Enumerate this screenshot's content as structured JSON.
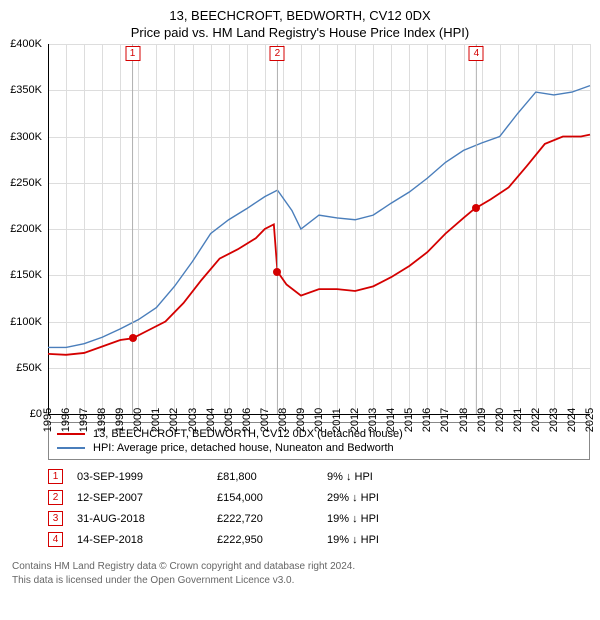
{
  "title_line1": "13, BEECHCROFT, BEDWORTH, CV12 0DX",
  "title_line2": "Price paid vs. HM Land Registry's House Price Index (HPI)",
  "chart": {
    "type": "line",
    "background_color": "#ffffff",
    "grid_color": "#dddddd",
    "axis_color": "#000000",
    "tick_fontsize": 11,
    "y": {
      "min": 0,
      "max": 400000,
      "step": 50000,
      "format": "gbp_k",
      "labels": [
        "£0",
        "£50K",
        "£100K",
        "£150K",
        "£200K",
        "£250K",
        "£300K",
        "£350K",
        "£400K"
      ]
    },
    "x": {
      "min": 1995,
      "max": 2025,
      "step": 1,
      "labels": [
        "1995",
        "1996",
        "1997",
        "1998",
        "1999",
        "2000",
        "2001",
        "2002",
        "2003",
        "2004",
        "2005",
        "2006",
        "2007",
        "2008",
        "2009",
        "2010",
        "2011",
        "2012",
        "2013",
        "2014",
        "2015",
        "2016",
        "2017",
        "2018",
        "2019",
        "2020",
        "2021",
        "2022",
        "2023",
        "2024",
        "2025"
      ]
    },
    "series": [
      {
        "name": "subject",
        "color": "#d40000",
        "line_width": 1.8,
        "points": [
          [
            1995.0,
            65000
          ],
          [
            1996.0,
            64000
          ],
          [
            1997.0,
            66000
          ],
          [
            1998.0,
            73000
          ],
          [
            1999.0,
            80000
          ],
          [
            1999.68,
            81800
          ],
          [
            2000.5,
            90000
          ],
          [
            2001.5,
            100000
          ],
          [
            2002.5,
            120000
          ],
          [
            2003.5,
            145000
          ],
          [
            2004.5,
            168000
          ],
          [
            2005.5,
            178000
          ],
          [
            2006.5,
            190000
          ],
          [
            2007.0,
            200000
          ],
          [
            2007.5,
            205000
          ],
          [
            2007.7,
            154000
          ],
          [
            2008.2,
            140000
          ],
          [
            2009.0,
            128000
          ],
          [
            2010.0,
            135000
          ],
          [
            2011.0,
            135000
          ],
          [
            2012.0,
            133000
          ],
          [
            2013.0,
            138000
          ],
          [
            2014.0,
            148000
          ],
          [
            2015.0,
            160000
          ],
          [
            2016.0,
            175000
          ],
          [
            2017.0,
            195000
          ],
          [
            2018.0,
            212000
          ],
          [
            2018.66,
            222720
          ],
          [
            2018.71,
            222950
          ],
          [
            2019.5,
            232000
          ],
          [
            2020.5,
            245000
          ],
          [
            2021.5,
            268000
          ],
          [
            2022.5,
            292000
          ],
          [
            2023.5,
            300000
          ],
          [
            2024.5,
            300000
          ],
          [
            2025.0,
            302000
          ]
        ]
      },
      {
        "name": "hpi",
        "color": "#4a7ebb",
        "line_width": 1.4,
        "points": [
          [
            1995.0,
            72000
          ],
          [
            1996.0,
            72000
          ],
          [
            1997.0,
            76000
          ],
          [
            1998.0,
            83000
          ],
          [
            1999.0,
            92000
          ],
          [
            2000.0,
            102000
          ],
          [
            2001.0,
            115000
          ],
          [
            2002.0,
            138000
          ],
          [
            2003.0,
            165000
          ],
          [
            2004.0,
            195000
          ],
          [
            2005.0,
            210000
          ],
          [
            2006.0,
            222000
          ],
          [
            2007.0,
            235000
          ],
          [
            2007.7,
            242000
          ],
          [
            2008.5,
            220000
          ],
          [
            2009.0,
            200000
          ],
          [
            2010.0,
            215000
          ],
          [
            2011.0,
            212000
          ],
          [
            2012.0,
            210000
          ],
          [
            2013.0,
            215000
          ],
          [
            2014.0,
            228000
          ],
          [
            2015.0,
            240000
          ],
          [
            2016.0,
            255000
          ],
          [
            2017.0,
            272000
          ],
          [
            2018.0,
            285000
          ],
          [
            2019.0,
            293000
          ],
          [
            2020.0,
            300000
          ],
          [
            2021.0,
            325000
          ],
          [
            2022.0,
            348000
          ],
          [
            2023.0,
            345000
          ],
          [
            2024.0,
            348000
          ],
          [
            2025.0,
            355000
          ]
        ]
      }
    ],
    "marker_line_color": "#b0b0b0",
    "sale_markers": [
      {
        "num": "1",
        "x": 1999.68,
        "y": 81800,
        "color": "#d40000"
      },
      {
        "num": "2",
        "x": 2007.7,
        "y": 154000,
        "color": "#d40000"
      },
      {
        "num": "4",
        "x": 2018.71,
        "y": 222950,
        "color": "#d40000"
      }
    ]
  },
  "legend": {
    "items": [
      {
        "color": "#d40000",
        "label": "13, BEECHCROFT, BEDWORTH, CV12 0DX (detached house)"
      },
      {
        "color": "#4a7ebb",
        "label": "HPI: Average price, detached house, Nuneaton and Bedworth"
      }
    ]
  },
  "sales": [
    {
      "num": "1",
      "date": "03-SEP-1999",
      "price": "£81,800",
      "diff": "9% ↓ HPI",
      "color": "#d40000"
    },
    {
      "num": "2",
      "date": "12-SEP-2007",
      "price": "£154,000",
      "diff": "29% ↓ HPI",
      "color": "#d40000"
    },
    {
      "num": "3",
      "date": "31-AUG-2018",
      "price": "£222,720",
      "diff": "19% ↓ HPI",
      "color": "#d40000"
    },
    {
      "num": "4",
      "date": "14-SEP-2018",
      "price": "£222,950",
      "diff": "19% ↓ HPI",
      "color": "#d40000"
    }
  ],
  "footer_line1": "Contains HM Land Registry data © Crown copyright and database right 2024.",
  "footer_line2": "This data is licensed under the Open Government Licence v3.0."
}
